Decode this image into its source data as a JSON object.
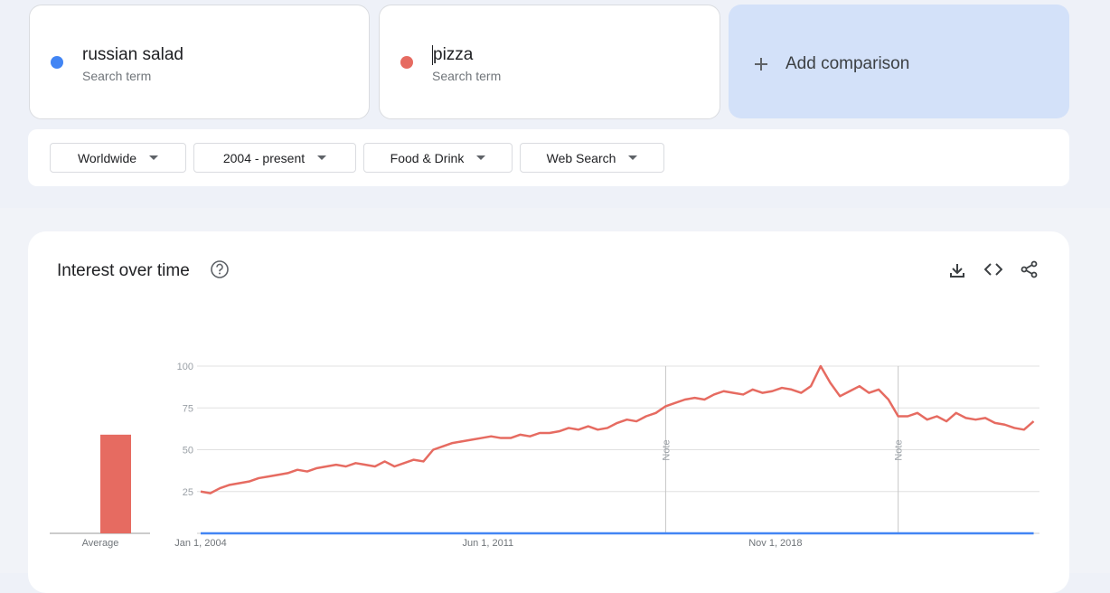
{
  "search_terms": [
    {
      "subtitle": "Search term"
    },
    {
      "subtitle": "Search term"
    }
  ],
  "add_comparison": "Add comparison",
  "filters": [
    "Worldwide",
    "2004 - present",
    "Food & Drink",
    "Web Search"
  ],
  "panel": {
    "title": "Interest over time"
  },
  "chart_data": {
    "type": "line",
    "x": [
      "2004-01-01",
      "2004-04-01",
      "2004-07-01",
      "2004-10-01",
      "2005-01-01",
      "2005-04-01",
      "2005-07-01",
      "2005-10-01",
      "2006-01-01",
      "2006-04-01",
      "2006-07-01",
      "2006-10-01",
      "2007-01-01",
      "2007-04-01",
      "2007-07-01",
      "2007-10-01",
      "2008-01-01",
      "2008-04-01",
      "2008-07-01",
      "2008-10-01",
      "2009-01-01",
      "2009-04-01",
      "2009-07-01",
      "2009-10-01",
      "2010-01-01",
      "2010-04-01",
      "2010-07-01",
      "2010-10-01",
      "2011-01-01",
      "2011-04-01",
      "2011-07-01",
      "2011-10-01",
      "2012-01-01",
      "2012-04-01",
      "2012-07-01",
      "2012-10-01",
      "2013-01-01",
      "2013-04-01",
      "2013-07-01",
      "2013-10-01",
      "2014-01-01",
      "2014-04-01",
      "2014-07-01",
      "2014-10-01",
      "2015-01-01",
      "2015-04-01",
      "2015-07-01",
      "2015-10-01",
      "2016-01-01",
      "2016-04-01",
      "2016-07-01",
      "2016-10-01",
      "2017-01-01",
      "2017-04-01",
      "2017-07-01",
      "2017-10-01",
      "2018-01-01",
      "2018-04-01",
      "2018-07-01",
      "2018-10-01",
      "2019-01-01",
      "2019-04-01",
      "2019-07-01",
      "2019-10-01",
      "2020-01-01",
      "2020-04-01",
      "2020-07-01",
      "2020-10-01",
      "2021-01-01",
      "2021-04-01",
      "2021-07-01",
      "2021-10-01",
      "2022-01-01",
      "2022-04-01",
      "2022-07-01",
      "2022-10-01",
      "2023-01-01",
      "2023-04-01",
      "2023-07-01",
      "2023-10-01",
      "2024-01-01",
      "2024-04-01",
      "2024-07-01",
      "2024-10-01",
      "2025-01-01",
      "2025-04-01",
      "2025-07-01"
    ],
    "series": [
      {
        "name": "russian salad",
        "color": "#4285f4",
        "values": [
          0,
          0,
          0,
          0,
          0,
          0,
          0,
          0,
          0,
          0,
          0,
          0,
          0,
          0,
          0,
          0,
          0,
          0,
          0,
          0,
          0,
          0,
          0,
          0,
          0,
          0,
          0,
          0,
          0,
          0,
          0,
          0,
          0,
          0,
          0,
          0,
          0,
          0,
          0,
          0,
          0,
          0,
          0,
          0,
          0,
          0,
          0,
          0,
          0,
          0,
          0,
          0,
          0,
          0,
          0,
          0,
          0,
          0,
          0,
          0,
          0,
          0,
          0,
          0,
          0,
          0,
          0,
          0,
          0,
          0,
          0,
          0,
          0,
          0,
          0,
          0,
          0,
          0,
          0,
          0,
          0,
          0,
          0,
          0,
          0,
          0,
          0
        ]
      },
      {
        "name": "pizza",
        "color": "#e66b61",
        "values": [
          25,
          24,
          27,
          29,
          30,
          31,
          33,
          34,
          35,
          36,
          38,
          37,
          39,
          40,
          41,
          40,
          42,
          41,
          40,
          43,
          40,
          42,
          44,
          43,
          50,
          52,
          54,
          55,
          56,
          57,
          58,
          57,
          57,
          59,
          58,
          60,
          60,
          61,
          63,
          62,
          64,
          62,
          63,
          66,
          68,
          67,
          70,
          72,
          76,
          78,
          80,
          81,
          80,
          83,
          85,
          84,
          83,
          86,
          84,
          85,
          87,
          86,
          84,
          88,
          100,
          90,
          82,
          85,
          88,
          84,
          86,
          80,
          70,
          70,
          72,
          68,
          70,
          67,
          72,
          69,
          68,
          69,
          66,
          65,
          63,
          62,
          67
        ]
      }
    ],
    "xlim": [
      "2004-01-01",
      "2025-08-25"
    ],
    "xticks": [
      {
        "value": "2004-01-01",
        "label": "Jan 1, 2004"
      },
      {
        "value": "2011-06-01",
        "label": "Jun 1, 2011"
      },
      {
        "value": "2018-11-01",
        "label": "Nov 1, 2018"
      }
    ],
    "ylim": [
      0,
      100
    ],
    "yticks": [
      25,
      50,
      75,
      100
    ],
    "grid": true,
    "average": {
      "label": "Average",
      "values": [
        0,
        59
      ]
    },
    "notes": [
      {
        "x": "2016-01-01",
        "label": "Note"
      },
      {
        "x": "2022-01-01",
        "label": "Note"
      }
    ]
  }
}
